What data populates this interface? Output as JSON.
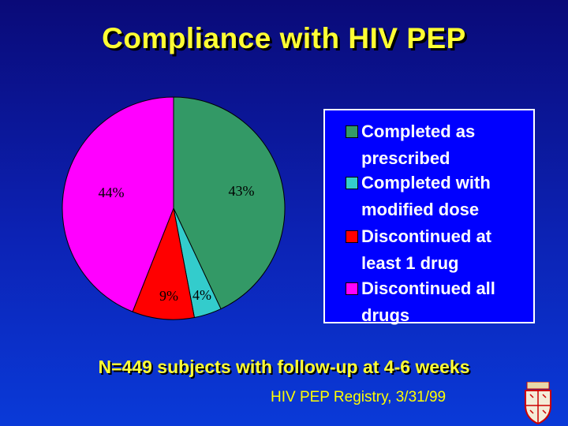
{
  "slide": {
    "title": "Compliance with HIV PEP",
    "footer": "N=449 subjects with follow-up at 4-6 weeks",
    "source": "HIV PEP Registry, 3/31/99"
  },
  "chart_data": {
    "type": "pie",
    "slices": [
      {
        "label": "Completed as prescribed",
        "value": 43,
        "display": "43%",
        "color": "#339966"
      },
      {
        "label": "Completed with modified dose",
        "value": 4,
        "display": "4%",
        "color": "#33cccc"
      },
      {
        "label": "Discontinued at least 1 drug",
        "value": 9,
        "display": "9%",
        "color": "#ff0000"
      },
      {
        "label": "Discontinued all drugs",
        "value": 44,
        "display": "44%",
        "color": "#ff00ff"
      }
    ],
    "legend_position": "right",
    "start_angle": "12 o'clock, clockwise"
  },
  "legend": {
    "items": [
      {
        "line1": "Completed as",
        "line2": "prescribed",
        "color": "#339966"
      },
      {
        "line1": "Completed with",
        "line2": "modified dose",
        "color": "#33cccc"
      },
      {
        "line1": "Discontinued at",
        "line2": "least 1 drug",
        "color": "#ff0000"
      },
      {
        "line1": "Discontinued all",
        "line2": "drugs",
        "color": "#ff00ff"
      }
    ]
  },
  "colors": {
    "title_text": "#ffff33",
    "legend_background": "#0000ff"
  }
}
